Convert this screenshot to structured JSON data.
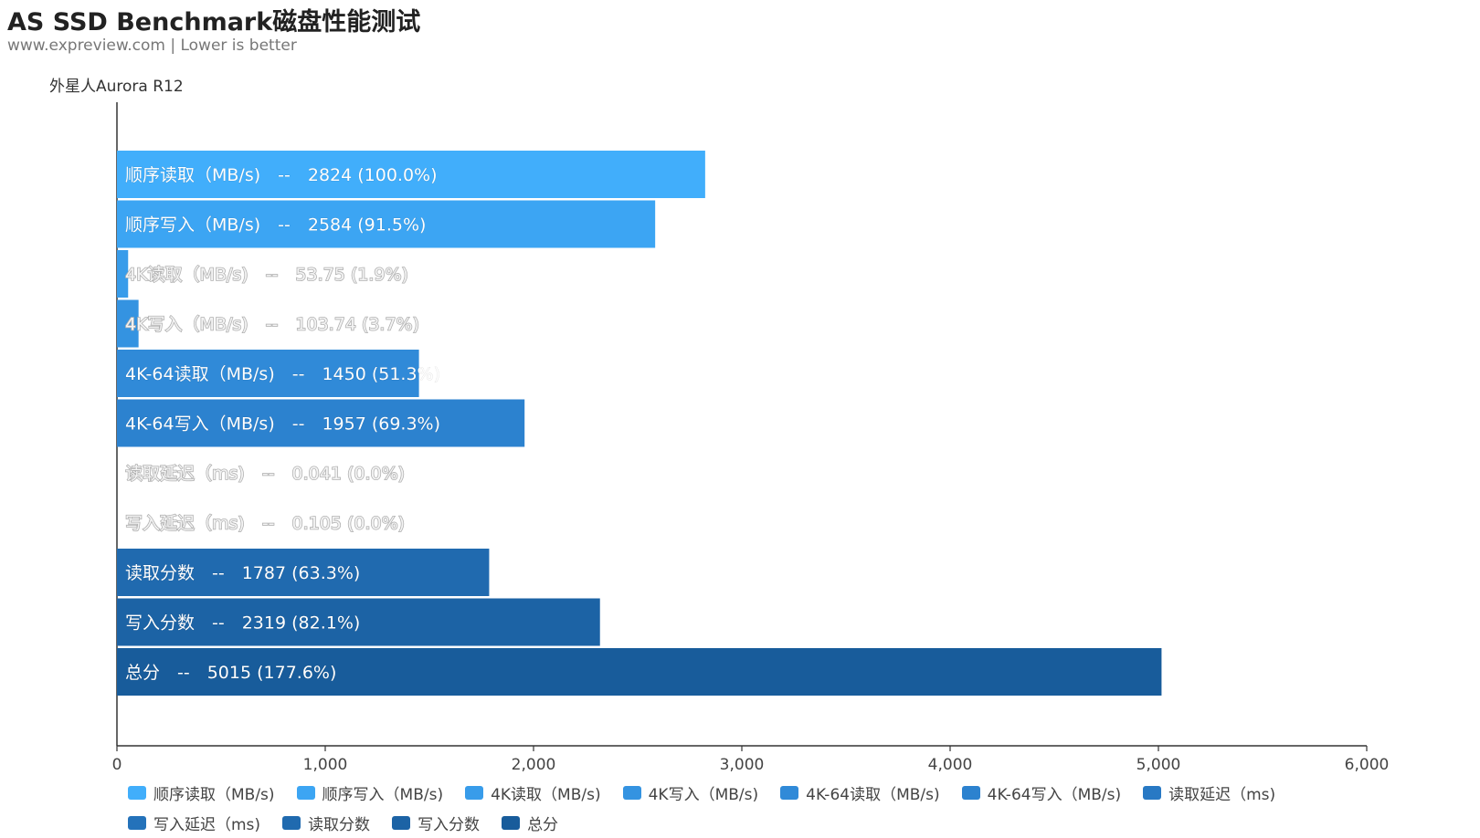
{
  "header": {
    "title": "AS SSD Benchmark磁盘性能测试",
    "subtitle": "www.expreview.com | Lower is better"
  },
  "chart_data": {
    "type": "bar",
    "orientation": "horizontal",
    "category": "外星人Aurora R12",
    "xlim": [
      0,
      6000
    ],
    "x_ticks": [
      "0",
      "1,000",
      "2,000",
      "3,000",
      "4,000",
      "5,000",
      "6,000"
    ],
    "grid": false,
    "legend_position": "bottom",
    "series": [
      {
        "name": "顺序读取（MB/s)",
        "value": 2824,
        "label": "顺序读取（MB/s)　--　2824 (100.0%)",
        "color": "#41aefb",
        "dim": false
      },
      {
        "name": "顺序写入（MB/s)",
        "value": 2584,
        "label": "顺序写入（MB/s)　--　2584 (91.5%)",
        "color": "#3ca5f3",
        "dim": false
      },
      {
        "name": "4K读取（MB/s)",
        "value": 53.75,
        "label": "4K读取（MB/s)　--　53.75 (1.9%)",
        "color": "#389cea",
        "dim": true
      },
      {
        "name": "4K写入（MB/s)",
        "value": 103.74,
        "label": "4K写入（MB/s)　--　103.74 (3.7%)",
        "color": "#3493e1",
        "dim": true
      },
      {
        "name": "4K-64读取（MB/s)",
        "value": 1450,
        "label": "4K-64读取（MB/s)　--　1450 (51.3%)",
        "color": "#308ad8",
        "dim": false
      },
      {
        "name": "4K-64写入（MB/s)",
        "value": 1957,
        "label": "4K-64写入（MB/s)　--　1957 (69.3%)",
        "color": "#2c82cf",
        "dim": false
      },
      {
        "name": "读取延迟（ms)",
        "value": 0.041,
        "label": "读取延迟（ms)　--　0.041 (0.0%)",
        "color": "#2879c4",
        "dim": true
      },
      {
        "name": "写入延迟（ms)",
        "value": 0.105,
        "label": "写入延迟（ms)　--　0.105 (0.0%)",
        "color": "#2472ba",
        "dim": true
      },
      {
        "name": "读取分数",
        "value": 1787,
        "label": "读取分数　--　1787 (63.3%)",
        "color": "#206aaf",
        "dim": false
      },
      {
        "name": "写入分数",
        "value": 2319,
        "label": "写入分数　--　2319 (82.1%)",
        "color": "#1c63a5",
        "dim": false
      },
      {
        "name": "总分",
        "value": 5015,
        "label": "总分　--　5015 (177.6%)",
        "color": "#185c9b",
        "dim": false
      }
    ]
  }
}
